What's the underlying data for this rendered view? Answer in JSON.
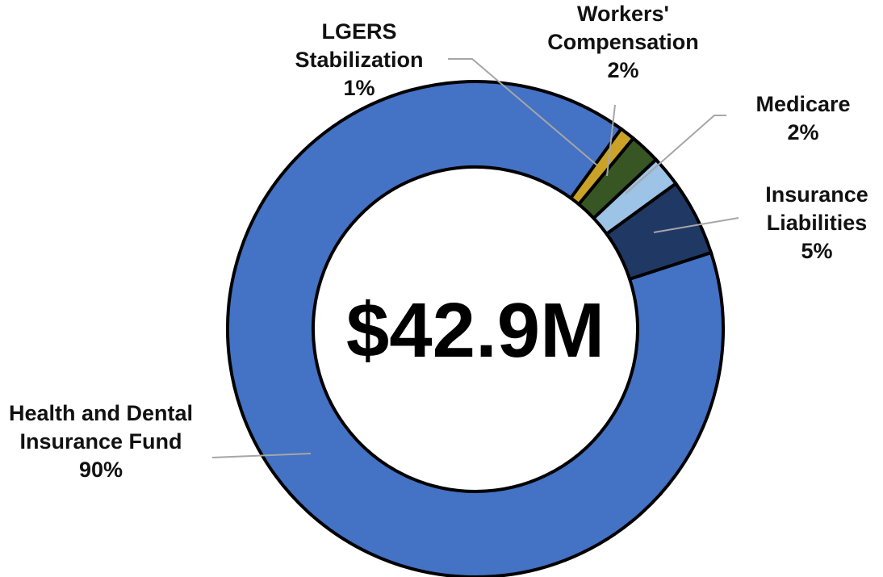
{
  "chart_data": {
    "type": "donut",
    "center_text": "$42.9M",
    "categories": [
      "LGERS Stabilization",
      "Workers' Compensation",
      "Medicare",
      "Insurance Liabilities",
      "Health and Dental Insurance Fund"
    ],
    "values": [
      1,
      2,
      2,
      5,
      90
    ],
    "value_labels": [
      "1%",
      "2%",
      "2%",
      "5%",
      "90%"
    ],
    "colors": [
      "#c9a227",
      "#375623",
      "#9dc3e6",
      "#203864",
      "#4472c4"
    ]
  }
}
